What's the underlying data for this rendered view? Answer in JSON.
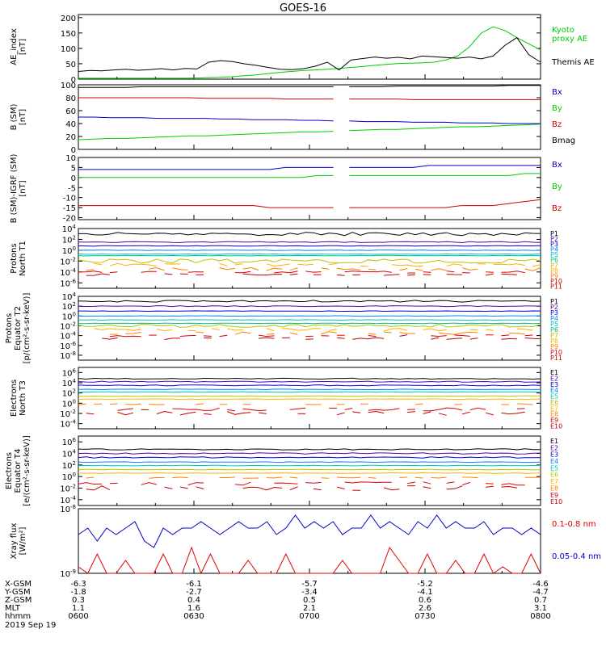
{
  "title": "GOES-16",
  "chart_data": [
    {
      "type": "line",
      "ylabel": "AE_index\n[nT]",
      "yticks": [
        "200",
        "150",
        "100",
        "50",
        "0"
      ],
      "ylim": [
        0,
        210
      ],
      "series": [
        {
          "name": "Kyoto\nproxy AE",
          "color": "#00cc00",
          "values": [
            3,
            3,
            3,
            3,
            3,
            3,
            3,
            3,
            3,
            3,
            4,
            5,
            6,
            8,
            11,
            14,
            18,
            22,
            25,
            28,
            30,
            32,
            35,
            38,
            41,
            45,
            48,
            51,
            52,
            53,
            55,
            62,
            75,
            105,
            150,
            170,
            158,
            135,
            115,
            95
          ]
        },
        {
          "name": "Themis AE",
          "color": "#000000",
          "values": [
            25,
            28,
            27,
            30,
            32,
            29,
            31,
            34,
            30,
            35,
            33,
            55,
            60,
            57,
            50,
            45,
            38,
            32,
            31,
            34,
            42,
            55,
            30,
            62,
            67,
            72,
            68,
            71,
            66,
            75,
            73,
            70,
            68,
            72,
            66,
            75,
            110,
            135,
            80,
            55
          ]
        }
      ]
    },
    {
      "type": "line",
      "ylabel": "B (SM)\n[nT]",
      "yticks": [
        "100",
        "80",
        "60",
        "40",
        "20",
        "0"
      ],
      "ylim": [
        0,
        100
      ],
      "series": [
        {
          "name": "Bx",
          "color": "#0000cc",
          "values": [
            50,
            50,
            49,
            49,
            49,
            48,
            48,
            48,
            48,
            47,
            47,
            46,
            46,
            46,
            45,
            45,
            44,
            44,
            43,
            43,
            43,
            42,
            42,
            42,
            41,
            41,
            41,
            40,
            40,
            40
          ]
        },
        {
          "name": "By",
          "color": "#00cc00",
          "values": [
            15,
            16,
            17,
            17,
            18,
            19,
            20,
            21,
            21,
            22,
            23,
            24,
            25,
            26,
            27,
            27,
            28,
            29,
            30,
            31,
            31,
            32,
            33,
            34,
            35,
            35,
            36,
            37,
            38,
            39
          ]
        },
        {
          "name": "Bz",
          "color": "#cc0000",
          "values": [
            80,
            80,
            80,
            80,
            80,
            80,
            80,
            80,
            79,
            79,
            79,
            79,
            79,
            78,
            78,
            78,
            78,
            78,
            78,
            78,
            78,
            77,
            77,
            77,
            77,
            77,
            77,
            77,
            77,
            77
          ]
        },
        {
          "name": "Bmag",
          "color": "#000000",
          "values": [
            96,
            96,
            96,
            96,
            97,
            97,
            97,
            97,
            97,
            97,
            97,
            97,
            97,
            97,
            97,
            97,
            97,
            97,
            97,
            97,
            98,
            98,
            98,
            98,
            98,
            98,
            98,
            99,
            99,
            99
          ]
        }
      ]
    },
    {
      "type": "line",
      "ylabel": "B (SM)-IGRF (SM)\n[nT]",
      "yticks": [
        "10",
        "5",
        "0",
        "-5",
        "-10",
        "-15",
        "-20"
      ],
      "ylim": [
        -21,
        10
      ],
      "series": [
        {
          "name": "Bx",
          "color": "#0000cc",
          "values": [
            4,
            4,
            4,
            4,
            4,
            4,
            4,
            4,
            4,
            4,
            4,
            4,
            4,
            5,
            5,
            5,
            5,
            5,
            5,
            5,
            5,
            5,
            6,
            6,
            6,
            6,
            6,
            6,
            6,
            6
          ]
        },
        {
          "name": "By",
          "color": "#00cc00",
          "values": [
            0,
            0,
            0,
            0,
            0,
            0,
            0,
            0,
            0,
            0,
            0,
            0,
            0,
            0,
            0,
            1,
            1,
            1,
            1,
            1,
            1,
            1,
            1,
            1,
            1,
            1,
            1,
            1,
            2,
            2
          ]
        },
        {
          "name": "Bz",
          "color": "#cc0000",
          "values": [
            -14,
            -14,
            -14,
            -14,
            -14,
            -14,
            -14,
            -14,
            -14,
            -14,
            -14,
            -14,
            -15,
            -15,
            -15,
            -15,
            -15,
            -15,
            -15,
            -15,
            -15,
            -15,
            -15,
            -15,
            -14,
            -14,
            -14,
            -13,
            -12,
            -11
          ]
        }
      ]
    },
    {
      "type": "line",
      "ylabel": "Protons\nNorth T1",
      "yticks": [
        "10^4",
        "10^2",
        "10^0",
        "10^-2",
        "10^-4",
        "10^-6"
      ],
      "ylim": [
        -7,
        4
      ],
      "legend": [
        "P1",
        "P2",
        "P3",
        "P4",
        "P5",
        "P6",
        "P7",
        "P8",
        "P9",
        "P10",
        "P11"
      ],
      "legend_colors": [
        "#000000",
        "#5a00a0",
        "#0000cc",
        "#0080ff",
        "#00c0c0",
        "#00c080",
        "#c0c000",
        "#ffb000",
        "#ff8000",
        "#e00000",
        "#c00000"
      ],
      "levels": [
        3.0,
        1.5,
        0.8,
        0.0,
        -0.7,
        -1.0,
        -2.0,
        -2.7,
        -3.5,
        -4.0,
        -4.5
      ],
      "wobble": [
        0.3,
        0.1,
        0.05,
        0.05,
        0.05,
        0.05,
        0.4,
        0.3,
        0.3,
        0.2,
        0.2
      ]
    },
    {
      "type": "line",
      "ylabel": "Protons\nEquator T2\n[p/(cm²-s-sr-keV)]",
      "yticks": [
        "10^4",
        "10^2",
        "10^0",
        "10^-2",
        "10^-4",
        "10^-6",
        "10^-8"
      ],
      "ylim": [
        -9,
        4
      ],
      "legend": [
        "P1",
        "P2",
        "P3",
        "P4",
        "P5",
        "P6",
        "P7",
        "P8",
        "P9",
        "P10",
        "P11"
      ],
      "legend_colors": [
        "#000000",
        "#5a00a0",
        "#0000cc",
        "#0080ff",
        "#00c0c0",
        "#00c080",
        "#c0c000",
        "#ffb000",
        "#ff8000",
        "#e00000",
        "#c00000"
      ],
      "levels": [
        3.0,
        2.0,
        1.0,
        0.0,
        -0.8,
        -1.5,
        -2.0,
        -2.8,
        -3.5,
        -4.0,
        -4.6
      ],
      "wobble": [
        0.2,
        0.1,
        0.05,
        0.05,
        0.05,
        0.05,
        0.3,
        0.3,
        0.3,
        0.2,
        0.2
      ]
    },
    {
      "type": "line",
      "ylabel": "Electrons\nNorth T3",
      "yticks": [
        "10^6",
        "10^4",
        "10^2",
        "10^0",
        "10^-2",
        "10^-4"
      ],
      "ylim": [
        -5,
        7
      ],
      "legend": [
        "E1",
        "E2",
        "E3",
        "E4",
        "E5",
        "E6",
        "E7",
        "E8",
        "E9",
        "E10"
      ],
      "legend_colors": [
        "#000000",
        "#5a00a0",
        "#0000cc",
        "#0080ff",
        "#00c0c0",
        "#c0c000",
        "#ffb000",
        "#ff8000",
        "#e00000",
        "#c00000"
      ],
      "levels": [
        4.8,
        4.2,
        3.5,
        2.7,
        2.2,
        1.4,
        0.8,
        -0.2,
        -1.2,
        -2.0
      ],
      "wobble": [
        0.1,
        0.1,
        0.1,
        0.05,
        0.05,
        0.05,
        0.05,
        0.1,
        0.3,
        0.4
      ]
    },
    {
      "type": "line",
      "ylabel": "Electrons\nEquator T4\n[e/(cm²-s-sr-keV)]",
      "yticks": [
        "10^6",
        "10^4",
        "10^2",
        "10^0",
        "10^-2",
        "10^-4"
      ],
      "ylim": [
        -5,
        7
      ],
      "legend": [
        "E1",
        "E2",
        "E3",
        "E4",
        "E5",
        "E6",
        "E7",
        "E8",
        "E9",
        "E10"
      ],
      "legend_colors": [
        "#000000",
        "#5a00a0",
        "#0000cc",
        "#0080ff",
        "#00c0c0",
        "#c0c000",
        "#ffb000",
        "#ff8000",
        "#e00000",
        "#c00000"
      ],
      "levels": [
        4.7,
        4.0,
        3.3,
        2.5,
        1.9,
        1.2,
        0.6,
        -0.2,
        -1.2,
        -2.0
      ],
      "wobble": [
        0.1,
        0.1,
        0.1,
        0.05,
        0.05,
        0.05,
        0.05,
        0.1,
        0.3,
        0.4
      ]
    },
    {
      "type": "line",
      "ylabel": "Xray flux\n[W/m²]",
      "yticks": [
        "10^-8",
        "10^-9"
      ],
      "ylim": [
        -9,
        -8
      ],
      "series": [
        {
          "name": "0.1-0.8 nm",
          "color": "#e00000",
          "values": [
            -8.9,
            -9.0,
            -8.7,
            -9.0,
            -9.0,
            -8.8,
            -9.0,
            -9.0,
            -9.0,
            -8.7,
            -9.0,
            -9.0,
            -8.6,
            -9.0,
            -8.7,
            -9.0,
            -9.0,
            -9.0,
            -8.8,
            -9.0,
            -9.0,
            -9.0,
            -8.7,
            -9.0,
            -9.0,
            -9.0,
            -9.0,
            -9.0,
            -8.8,
            -9.0,
            -9.0,
            -9.0,
            -9.0,
            -8.6,
            -8.8,
            -9.0,
            -9.0,
            -8.7,
            -9.0,
            -9.0,
            -8.8,
            -9.0,
            -9.0,
            -8.7,
            -9.0,
            -8.9,
            -9.0,
            -9.0,
            -8.7,
            -9.0
          ]
        },
        {
          "name": "0.05-0.4 nm",
          "color": "#0000cc",
          "values": [
            -8.4,
            -8.3,
            -8.5,
            -8.3,
            -8.4,
            -8.3,
            -8.2,
            -8.5,
            -8.6,
            -8.3,
            -8.4,
            -8.3,
            -8.3,
            -8.2,
            -8.3,
            -8.4,
            -8.3,
            -8.2,
            -8.3,
            -8.3,
            -8.2,
            -8.4,
            -8.3,
            -8.1,
            -8.3,
            -8.2,
            -8.3,
            -8.2,
            -8.4,
            -8.3,
            -8.3,
            -8.1,
            -8.3,
            -8.2,
            -8.3,
            -8.4,
            -8.2,
            -8.3,
            -8.1,
            -8.3,
            -8.2,
            -8.3,
            -8.3,
            -8.2,
            -8.4,
            -8.3,
            -8.3,
            -8.4,
            -8.3,
            -8.4
          ]
        }
      ]
    }
  ],
  "footer": {
    "labels": [
      "X-GSM",
      "Y-GSM",
      "Z-GSM",
      "MLT",
      "hhmm"
    ],
    "columns": [
      [
        "-6.3",
        "-1.8",
        "0.3",
        "1.1",
        "0600"
      ],
      [
        "-6.1",
        "-2.7",
        "0.4",
        "1.6",
        "0630"
      ],
      [
        "-5.7",
        "-3.4",
        "0.5",
        "2.1",
        "0700"
      ],
      [
        "-5.2",
        "-4.1",
        "0.6",
        "2.6",
        "0730"
      ],
      [
        "-4.6",
        "-4.7",
        "0.7",
        "3.1",
        "0800"
      ]
    ],
    "date": "2019 Sep 19"
  }
}
